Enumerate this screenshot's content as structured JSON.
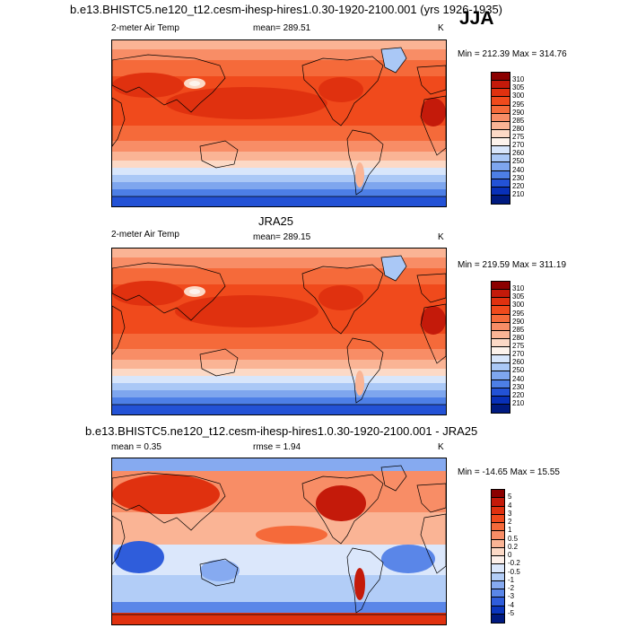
{
  "figure": {
    "season": "JJA",
    "units": "K"
  },
  "panels": [
    {
      "id": "model",
      "title": "b.e13.BHISTC5.ne120_t12.cesm-ihesp-hires1.0.30-1920-2100.001 (yrs 1926-1935)",
      "variable": "2-meter Air Temp",
      "stat_text": "mean= 289.51",
      "units": "K",
      "minmax": "Min = 212.39 Max = 314.76",
      "colorbar_labels": [
        "310",
        "305",
        "300",
        "295",
        "290",
        "285",
        "280",
        "275",
        "270",
        "260",
        "250",
        "240",
        "230",
        "220",
        "210"
      ],
      "colorbar_colors": [
        "#8b0000",
        "#c41a0a",
        "#e0310f",
        "#f04a1c",
        "#f56a3a",
        "#f88d66",
        "#fab495",
        "#fcd9c6",
        "#fdf3ec",
        "#d8e6fb",
        "#aac8f6",
        "#7ea6ee",
        "#4d7fe6",
        "#2352d6",
        "#0830b8",
        "#001a80"
      ]
    },
    {
      "id": "reference",
      "title": "JRA25",
      "variable": "2-meter Air Temp",
      "stat_text": "mean= 289.15",
      "units": "K",
      "minmax": "Min = 219.59 Max = 311.19",
      "colorbar_labels": [
        "310",
        "305",
        "300",
        "295",
        "290",
        "285",
        "280",
        "275",
        "270",
        "260",
        "250",
        "240",
        "230",
        "220",
        "210"
      ],
      "colorbar_colors": [
        "#8b0000",
        "#c41a0a",
        "#e0310f",
        "#f04a1c",
        "#f56a3a",
        "#f88d66",
        "#fab495",
        "#fcd9c6",
        "#fdf3ec",
        "#d8e6fb",
        "#aac8f6",
        "#7ea6ee",
        "#4d7fe6",
        "#2352d6",
        "#0830b8",
        "#001a80"
      ]
    },
    {
      "id": "difference",
      "title": "b.e13.BHISTC5.ne120_t12.cesm-ihesp-hires1.0.30-1920-2100.001 - JRA25",
      "stat_text": "mean =   0.35",
      "stat2_text": "rmse =   1.94",
      "units": "K",
      "minmax": "Min = -14.65 Max =  15.55",
      "colorbar_labels": [
        "5",
        "4",
        "3",
        "2",
        "1",
        "0.5",
        "0.2",
        "0",
        "-0.2",
        "-0.5",
        "-1",
        "-2",
        "-3",
        "-4",
        "-5"
      ],
      "colorbar_colors": [
        "#8b0000",
        "#c41a0a",
        "#e0310f",
        "#f04a1c",
        "#f56a3a",
        "#f88d66",
        "#fab495",
        "#fcd9c6",
        "#fdf0ea",
        "#dbe7fb",
        "#b2cdf7",
        "#86aaf0",
        "#5a86e8",
        "#2f5ddb",
        "#0b36bd",
        "#001a80"
      ]
    }
  ]
}
